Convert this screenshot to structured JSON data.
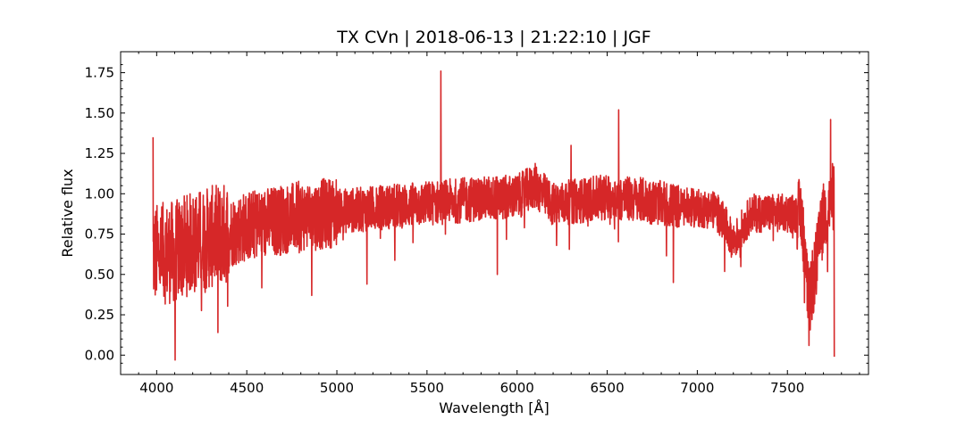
{
  "chart_data": {
    "type": "line",
    "title": "TX CVn | 2018-06-13 | 21:22:10 | JGF",
    "xlabel": "Wavelength [Å]",
    "ylabel": "Relative flux",
    "xlim": [
      3800,
      7950
    ],
    "ylim": [
      -0.12,
      1.88
    ],
    "xticks": [
      4000,
      4500,
      5000,
      5500,
      6000,
      6500,
      7000,
      7500
    ],
    "yticks": [
      0.0,
      0.25,
      0.5,
      0.75,
      1.0,
      1.25,
      1.5,
      1.75
    ],
    "xtick_labels": [
      "4000",
      "4500",
      "5000",
      "5500",
      "6000",
      "6500",
      "7000",
      "7500"
    ],
    "ytick_labels": [
      "0.00",
      "0.25",
      "0.50",
      "0.75",
      "1.00",
      "1.25",
      "1.50",
      "1.75"
    ],
    "grid": false,
    "series_color": "#d62728",
    "continuum": [
      [
        3980,
        0.62
      ],
      [
        4100,
        0.64
      ],
      [
        4200,
        0.7
      ],
      [
        4300,
        0.73
      ],
      [
        4400,
        0.76
      ],
      [
        4500,
        0.8
      ],
      [
        4600,
        0.82
      ],
      [
        4700,
        0.84
      ],
      [
        4800,
        0.86
      ],
      [
        4900,
        0.87
      ],
      [
        5000,
        0.89
      ],
      [
        5200,
        0.91
      ],
      [
        5400,
        0.93
      ],
      [
        5600,
        0.95
      ],
      [
        5800,
        0.97
      ],
      [
        6000,
        0.98
      ],
      [
        6100,
        1.05
      ],
      [
        6200,
        0.93
      ],
      [
        6300,
        0.95
      ],
      [
        6500,
        0.98
      ],
      [
        6700,
        0.96
      ],
      [
        6900,
        0.92
      ],
      [
        7000,
        0.91
      ],
      [
        7100,
        0.9
      ],
      [
        7150,
        0.82
      ],
      [
        7200,
        0.7
      ],
      [
        7300,
        0.88
      ],
      [
        7500,
        0.88
      ],
      [
        7580,
        0.87
      ],
      [
        7620,
        0.3
      ],
      [
        7700,
        0.85
      ],
      [
        7760,
        1.0
      ]
    ],
    "features": [
      {
        "x": 3980,
        "y": 1.35
      },
      {
        "x": 4102,
        "y": -0.03
      },
      {
        "x": 4340,
        "y": 0.14
      },
      {
        "x": 4861,
        "y": 0.37
      },
      {
        "x": 5167,
        "y": 0.44
      },
      {
        "x": 5577,
        "y": 1.76
      },
      {
        "x": 5890,
        "y": 0.5
      },
      {
        "x": 6300,
        "y": 1.3
      },
      {
        "x": 6563,
        "y": 1.52
      },
      {
        "x": 6867,
        "y": 0.45
      },
      {
        "x": 7620,
        "y": 0.06
      },
      {
        "x": 7740,
        "y": 1.46
      },
      {
        "x": 7760,
        "y": -0.01
      }
    ]
  }
}
